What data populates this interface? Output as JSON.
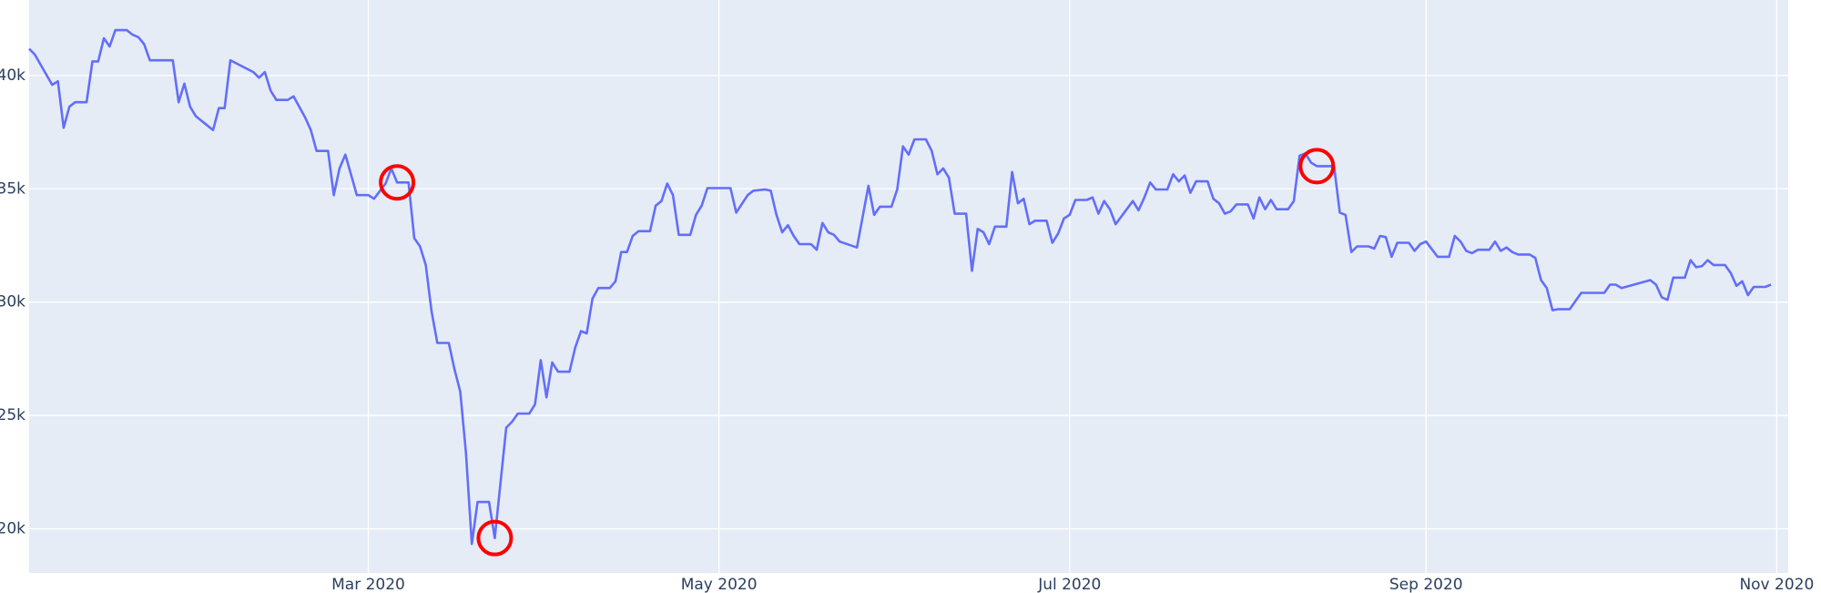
{
  "chart_data": {
    "type": "line",
    "x": [
      "2020-01-02",
      "2020-01-03",
      "2020-01-06",
      "2020-01-07",
      "2020-01-08",
      "2020-01-09",
      "2020-01-10",
      "2020-01-12",
      "2020-01-13",
      "2020-01-14",
      "2020-01-15",
      "2020-01-16",
      "2020-01-17",
      "2020-01-19",
      "2020-01-20",
      "2020-01-21",
      "2020-01-22",
      "2020-01-23",
      "2020-01-27",
      "2020-01-28",
      "2020-01-29",
      "2020-01-30",
      "2020-01-31",
      "2020-02-03",
      "2020-02-04",
      "2020-02-05",
      "2020-02-06",
      "2020-02-10",
      "2020-02-11",
      "2020-02-12",
      "2020-02-13",
      "2020-02-14",
      "2020-02-16",
      "2020-02-17",
      "2020-02-19",
      "2020-02-20",
      "2020-02-21",
      "2020-02-23",
      "2020-02-24",
      "2020-02-25",
      "2020-02-26",
      "2020-02-28",
      "2020-03-01",
      "2020-03-02",
      "2020-03-04",
      "2020-03-05",
      "2020-03-06",
      "2020-03-08",
      "2020-03-09",
      "2020-03-10",
      "2020-03-11",
      "2020-03-12",
      "2020-03-13",
      "2020-03-15",
      "2020-03-16",
      "2020-03-17",
      "2020-03-18",
      "2020-03-19",
      "2020-03-20",
      "2020-03-22",
      "2020-03-23",
      "2020-03-25",
      "2020-03-26",
      "2020-03-27",
      "2020-03-29",
      "2020-03-30",
      "2020-03-31",
      "2020-04-01",
      "2020-04-02",
      "2020-04-03",
      "2020-04-05",
      "2020-04-06",
      "2020-04-07",
      "2020-04-08",
      "2020-04-09",
      "2020-04-10",
      "2020-04-12",
      "2020-04-13",
      "2020-04-14",
      "2020-04-15",
      "2020-04-16",
      "2020-04-17",
      "2020-04-19",
      "2020-04-20",
      "2020-04-21",
      "2020-04-22",
      "2020-04-23",
      "2020-04-24",
      "2020-04-26",
      "2020-04-27",
      "2020-04-28",
      "2020-04-29",
      "2020-05-03",
      "2020-05-04",
      "2020-05-06",
      "2020-05-07",
      "2020-05-09",
      "2020-05-10",
      "2020-05-11",
      "2020-05-12",
      "2020-05-13",
      "2020-05-14",
      "2020-05-15",
      "2020-05-17",
      "2020-05-18",
      "2020-05-19",
      "2020-05-20",
      "2020-05-21",
      "2020-05-22",
      "2020-05-25",
      "2020-05-27",
      "2020-05-28",
      "2020-05-29",
      "2020-05-31",
      "2020-06-01",
      "2020-06-02",
      "2020-06-03",
      "2020-06-04",
      "2020-06-06",
      "2020-06-07",
      "2020-06-08",
      "2020-06-09",
      "2020-06-10",
      "2020-06-11",
      "2020-06-13",
      "2020-06-14",
      "2020-06-15",
      "2020-06-16",
      "2020-06-17",
      "2020-06-18",
      "2020-06-20",
      "2020-06-21",
      "2020-06-22",
      "2020-06-23",
      "2020-06-24",
      "2020-06-25",
      "2020-06-27",
      "2020-06-28",
      "2020-06-29",
      "2020-06-30",
      "2020-07-01",
      "2020-07-02",
      "2020-07-04",
      "2020-07-05",
      "2020-07-06",
      "2020-07-07",
      "2020-07-08",
      "2020-07-09",
      "2020-07-12",
      "2020-07-13",
      "2020-07-14",
      "2020-07-15",
      "2020-07-16",
      "2020-07-18",
      "2020-07-19",
      "2020-07-20",
      "2020-07-21",
      "2020-07-22",
      "2020-07-23",
      "2020-07-25",
      "2020-07-26",
      "2020-07-27",
      "2020-07-28",
      "2020-07-29",
      "2020-07-30",
      "2020-08-01",
      "2020-08-02",
      "2020-08-03",
      "2020-08-04",
      "2020-08-05",
      "2020-08-06",
      "2020-08-08",
      "2020-08-09",
      "2020-08-10",
      "2020-08-11",
      "2020-08-12",
      "2020-08-13",
      "2020-08-16",
      "2020-08-17",
      "2020-08-18",
      "2020-08-19",
      "2020-08-20",
      "2020-08-22",
      "2020-08-23",
      "2020-08-24",
      "2020-08-25",
      "2020-08-26",
      "2020-08-27",
      "2020-08-29",
      "2020-08-30",
      "2020-08-31",
      "2020-09-01",
      "2020-09-03",
      "2020-09-05",
      "2020-09-06",
      "2020-09-07",
      "2020-09-08",
      "2020-09-09",
      "2020-09-10",
      "2020-09-12",
      "2020-09-13",
      "2020-09-14",
      "2020-09-15",
      "2020-09-16",
      "2020-09-17",
      "2020-09-19",
      "2020-09-20",
      "2020-09-21",
      "2020-09-22",
      "2020-09-23",
      "2020-09-24",
      "2020-09-26",
      "2020-09-27",
      "2020-09-28",
      "2020-10-02",
      "2020-10-03",
      "2020-10-04",
      "2020-10-05",
      "2020-10-10",
      "2020-10-11",
      "2020-10-12",
      "2020-10-13",
      "2020-10-14",
      "2020-10-16",
      "2020-10-17",
      "2020-10-18",
      "2020-10-19",
      "2020-10-20",
      "2020-10-21",
      "2020-10-23",
      "2020-10-24",
      "2020-10-25",
      "2020-10-26",
      "2020-10-27",
      "2020-10-28",
      "2020-10-30",
      "2020-10-31"
    ],
    "series": [
      {
        "color": "#636efa",
        "values": [
          41180,
          40920,
          39590,
          39740,
          37690,
          38620,
          38820,
          38820,
          40620,
          40620,
          41640,
          41280,
          42000,
          42000,
          41800,
          41690,
          41380,
          40670,
          40670,
          38820,
          39640,
          38620,
          38200,
          37590,
          38560,
          38560,
          40670,
          40150,
          39900,
          40150,
          39330,
          38920,
          38920,
          39080,
          38150,
          37590,
          36670,
          36670,
          34720,
          35900,
          36510,
          34720,
          34720,
          34560,
          35230,
          35900,
          35280,
          35280,
          32820,
          32460,
          31640,
          29590,
          28200,
          28200,
          27030,
          26050,
          23330,
          19330,
          21180,
          21180,
          19590,
          24460,
          24720,
          25080,
          25080,
          25490,
          27440,
          25800,
          27340,
          26930,
          26930,
          28000,
          28720,
          28620,
          30150,
          30620,
          30620,
          30920,
          32210,
          32210,
          32920,
          33130,
          33130,
          34260,
          34460,
          35230,
          34720,
          32970,
          32970,
          33850,
          34260,
          35030,
          35030,
          33950,
          34720,
          34920,
          34970,
          34920,
          33850,
          33080,
          33390,
          32920,
          32560,
          32560,
          32310,
          33490,
          33080,
          32970,
          32670,
          32410,
          35130,
          33850,
          34210,
          34210,
          34970,
          36870,
          36510,
          37180,
          37180,
          36670,
          35640,
          35900,
          35490,
          33900,
          33900,
          31380,
          33230,
          33080,
          32560,
          33330,
          33330,
          35740,
          34360,
          34560,
          33440,
          33590,
          33590,
          32620,
          33030,
          33690,
          33850,
          34510,
          34510,
          34620,
          33900,
          34460,
          34100,
          33440,
          34460,
          34050,
          34620,
          35280,
          34970,
          34970,
          35640,
          35330,
          35590,
          34820,
          35330,
          35330,
          34560,
          34360,
          33900,
          34000,
          34310,
          34310,
          33690,
          34620,
          34100,
          34510,
          34100,
          34100,
          34460,
          36460,
          36560,
          36150,
          36000,
          36000,
          33950,
          33850,
          32210,
          32460,
          32460,
          32360,
          32920,
          32870,
          32000,
          32620,
          32620,
          32260,
          32560,
          32670,
          32000,
          32000,
          32920,
          32670,
          32260,
          32160,
          32310,
          32310,
          32670,
          32260,
          32410,
          32210,
          32100,
          32100,
          31950,
          30970,
          30620,
          29640,
          29690,
          29690,
          30050,
          30410,
          30410,
          30770,
          30770,
          30620,
          30970,
          30770,
          30210,
          30100,
          31080,
          31080,
          31850,
          31540,
          31590,
          31850,
          31640,
          31640,
          31280,
          30720,
          30920,
          30310,
          30670,
          30670,
          30770
        ]
      }
    ],
    "markers": {
      "color": "#ff0000",
      "x": [
        "2020-03-06",
        "2020-03-23",
        "2020-08-13"
      ],
      "values": [
        35280,
        19590,
        36000
      ]
    },
    "xlim": [
      "2020-01-02",
      "2020-11-03"
    ],
    "xticks": [
      {
        "value": "2020-03-01",
        "label": "Mar 2020"
      },
      {
        "value": "2020-05-01",
        "label": "May 2020"
      },
      {
        "value": "2020-07-01",
        "label": "Jul 2020"
      },
      {
        "value": "2020-09-01",
        "label": "Sep 2020"
      },
      {
        "value": "2020-11-01",
        "label": "Nov 2020"
      }
    ],
    "ylim": [
      18050,
      43330
    ],
    "yticks": [
      {
        "value": 20000,
        "label": "20k"
      },
      {
        "value": 25000,
        "label": "25k"
      },
      {
        "value": 30000,
        "label": "30k"
      },
      {
        "value": 35000,
        "label": "35k"
      },
      {
        "value": 40000,
        "label": "40k"
      }
    ],
    "grid": true
  }
}
